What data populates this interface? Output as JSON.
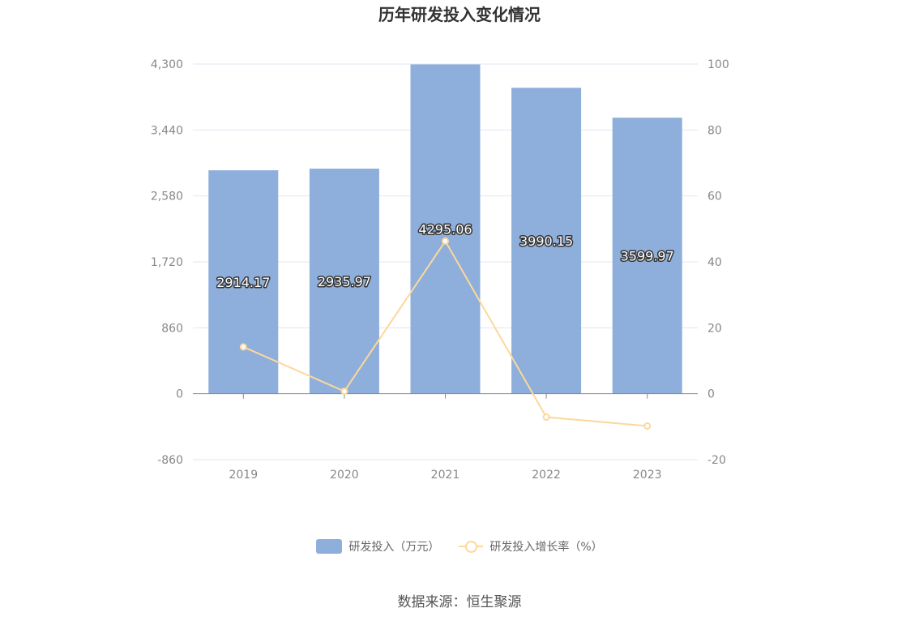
{
  "page": {
    "title": "历年研发投入变化情况",
    "source": "数据来源：恒生聚源"
  },
  "legend": {
    "bar_label": "研发投入（万元）",
    "line_label": "研发投入增长率（%）"
  },
  "colors": {
    "bar": "#8eaedb",
    "line": "#fcd89b",
    "grid": "#e3e6f3",
    "axis": "#999999"
  },
  "chart_data": {
    "type": "bar",
    "title": "历年研发投入变化情况",
    "categories": [
      "2019",
      "2020",
      "2021",
      "2022",
      "2023"
    ],
    "series": [
      {
        "name": "研发投入（万元）",
        "type": "bar",
        "axis": "left",
        "values": [
          2914.17,
          2935.97,
          4295.06,
          3990.15,
          3599.97
        ],
        "labels": [
          "2914.17",
          "2935.97",
          "4295.06",
          "3990.15",
          "3599.97"
        ]
      },
      {
        "name": "研发投入增长率（%）",
        "type": "line",
        "axis": "right",
        "values": [
          14.2,
          0.75,
          46.29,
          -7.1,
          -9.78
        ]
      }
    ],
    "y_left": {
      "min": -860,
      "max": 4300,
      "ticks": [
        -860,
        0,
        860,
        1720,
        2580,
        3440,
        4300
      ],
      "tick_labels": [
        "-860",
        "0",
        "860",
        "1,720",
        "2,580",
        "3,440",
        "4,300"
      ]
    },
    "y_right": {
      "min": -20,
      "max": 100,
      "ticks": [
        -20,
        0,
        20,
        40,
        60,
        80,
        100
      ],
      "tick_labels": [
        "-20",
        "0",
        "20",
        "40",
        "60",
        "80",
        "100"
      ]
    },
    "grid": true,
    "legend_position": "bottom"
  }
}
